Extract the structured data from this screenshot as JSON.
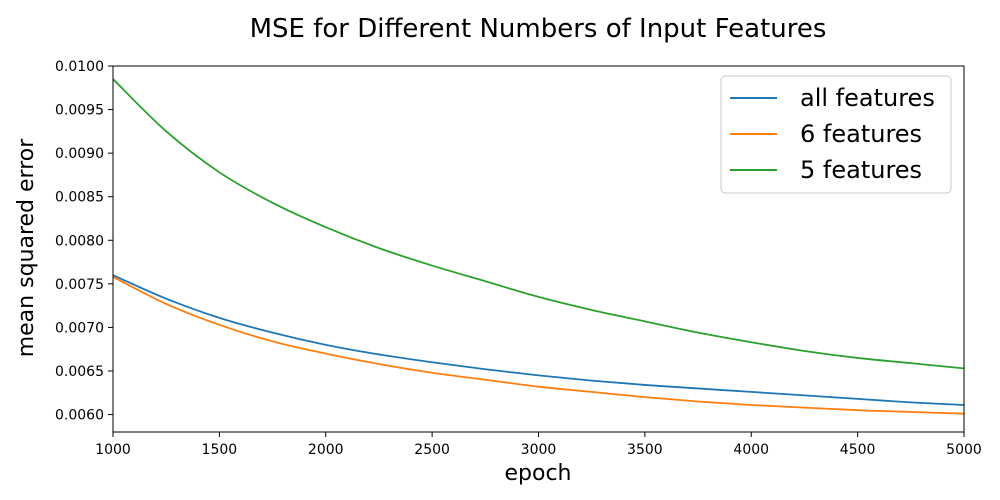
{
  "chart_data": {
    "type": "line",
    "title": "MSE for Different Numbers of Input Features",
    "xlabel": "epoch",
    "ylabel": "mean squared error",
    "xlim": [
      1000,
      5000
    ],
    "ylim": [
      0.0058,
      0.01
    ],
    "x_ticks": [
      "1000",
      "1500",
      "2000",
      "2500",
      "3000",
      "3500",
      "4000",
      "4500",
      "5000"
    ],
    "y_ticks": [
      "0.0060",
      "0.0065",
      "0.0070",
      "0.0075",
      "0.0080",
      "0.0085",
      "0.0090",
      "0.0095",
      "0.0100"
    ],
    "grid": false,
    "legend_position": "top-right",
    "x": [
      1000,
      1250,
      1500,
      1750,
      2000,
      2250,
      2500,
      2750,
      3000,
      3250,
      3500,
      3750,
      4000,
      4250,
      4500,
      4750,
      5000
    ],
    "series": [
      {
        "name": "all features",
        "color": "#1f77b4",
        "values": [
          0.0076,
          0.00733,
          0.00711,
          0.00694,
          0.0068,
          0.00669,
          0.0066,
          0.00652,
          0.00645,
          0.00639,
          0.00634,
          0.0063,
          0.00626,
          0.00622,
          0.00618,
          0.00614,
          0.00611
        ]
      },
      {
        "name": "6 features",
        "color": "#ff7f0e",
        "values": [
          0.00758,
          0.00727,
          0.00703,
          0.00684,
          0.0067,
          0.00658,
          0.00648,
          0.0064,
          0.00632,
          0.00626,
          0.0062,
          0.00615,
          0.00611,
          0.00608,
          0.00605,
          0.00603,
          0.00601
        ]
      },
      {
        "name": "5 features",
        "color": "#2ca02c",
        "values": [
          0.00985,
          0.00925,
          0.00878,
          0.00843,
          0.00815,
          0.00791,
          0.00771,
          0.00753,
          0.00735,
          0.0072,
          0.00707,
          0.00694,
          0.00683,
          0.00673,
          0.00665,
          0.00659,
          0.00653
        ]
      }
    ]
  }
}
